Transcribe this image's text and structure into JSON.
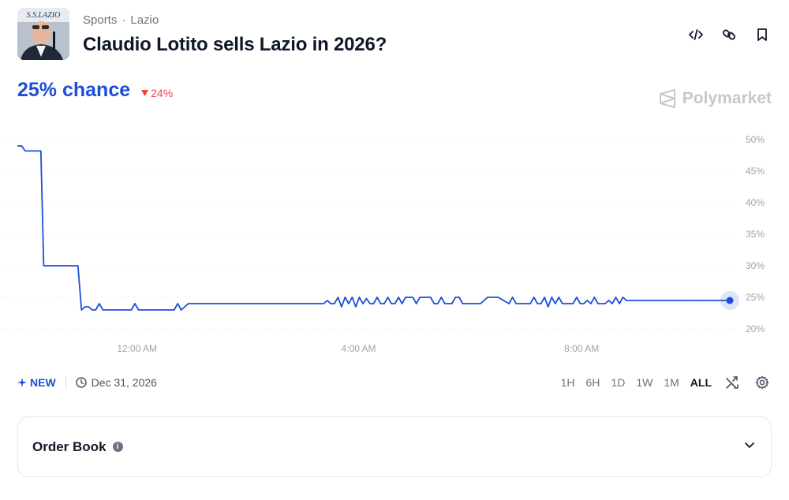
{
  "header": {
    "thumbnail_icon": "lazio-president-photo",
    "breadcrumb": [
      "Sports",
      "Lazio"
    ],
    "breadcrumb_sep": "·",
    "title": "Claudio Lotito sells Lazio in 2026?",
    "actions": [
      "embed-icon",
      "link-icon",
      "bookmark-icon"
    ]
  },
  "market": {
    "chance_label": "25% chance",
    "delta": "24%",
    "delta_direction": "down",
    "delta_color": "#ef4444",
    "accent": "#1d4ed8",
    "brand": "Polymarket"
  },
  "chart_data": {
    "type": "line",
    "title": "",
    "xlabel": "",
    "ylabel": "",
    "ylim": [
      20,
      50
    ],
    "yticks": [
      "50%",
      "45%",
      "40%",
      "35%",
      "30%",
      "25%",
      "20%"
    ],
    "ytick_values": [
      50,
      45,
      40,
      35,
      30,
      25,
      20
    ],
    "xtick_labels": [
      "12:00 AM",
      "4:00 AM",
      "8:00 AM"
    ],
    "xtick_positions": [
      0.168,
      0.479,
      0.792
    ],
    "grid": true,
    "line_color": "#1d4ed8",
    "series": [
      {
        "x": [
          0,
          0.006,
          0.011,
          0.015,
          0.033,
          0.037,
          0.08,
          0.085,
          0.09,
          0.095,
          0.1,
          0.105,
          0.11,
          0.115,
          0.12,
          0.14,
          0.16,
          0.165,
          0.17,
          0.2,
          0.22,
          0.225,
          0.23,
          0.24,
          0.25,
          0.3,
          0.35,
          0.43,
          0.435,
          0.44,
          0.445,
          0.45,
          0.455,
          0.46,
          0.465,
          0.47,
          0.475,
          0.48,
          0.485,
          0.49,
          0.495,
          0.5,
          0.505,
          0.51,
          0.515,
          0.52,
          0.525,
          0.53,
          0.535,
          0.54,
          0.545,
          0.55,
          0.555,
          0.56,
          0.565,
          0.57,
          0.58,
          0.585,
          0.59,
          0.595,
          0.6,
          0.61,
          0.615,
          0.62,
          0.625,
          0.63,
          0.64,
          0.645,
          0.65,
          0.66,
          0.675,
          0.69,
          0.695,
          0.7,
          0.72,
          0.725,
          0.73,
          0.735,
          0.74,
          0.745,
          0.75,
          0.755,
          0.76,
          0.765,
          0.77,
          0.775,
          0.78,
          0.785,
          0.79,
          0.795,
          0.8,
          0.805,
          0.81,
          0.815,
          0.82,
          0.825,
          0.83,
          0.835,
          0.84,
          0.845,
          0.85,
          0.855,
          0.86,
          0.865,
          0.87,
          1.0
        ],
        "values": [
          49,
          49,
          48.2,
          48.2,
          48.2,
          30,
          30,
          30,
          23,
          23.5,
          23.5,
          23,
          23,
          24,
          23,
          23,
          23,
          24,
          23,
          23,
          23,
          24,
          23,
          24,
          24,
          24,
          24,
          24,
          24.5,
          24,
          24,
          25,
          23.5,
          25,
          24,
          25,
          23.5,
          25,
          24,
          24.8,
          24,
          24,
          25,
          24,
          24,
          25,
          24,
          24,
          25,
          24,
          25,
          25,
          25,
          24,
          25,
          25,
          25,
          24,
          24,
          25,
          24,
          24,
          25,
          25,
          24,
          24,
          24,
          24,
          24,
          25,
          25,
          24,
          25,
          24,
          24,
          25,
          24,
          24,
          25,
          23.5,
          25,
          24,
          25,
          24,
          24,
          24,
          24,
          25,
          24,
          24,
          24.5,
          24,
          25,
          24,
          24,
          24,
          24.5,
          24,
          25,
          24,
          25,
          24.5,
          24.5,
          24.5,
          24.5,
          24.5
        ]
      }
    ]
  },
  "toolbar": {
    "new_label": "NEW",
    "date": "Dec 31, 2026",
    "ranges": [
      "1H",
      "6H",
      "1D",
      "1W",
      "1M",
      "ALL"
    ],
    "active_range": "ALL"
  },
  "orderbook": {
    "label": "Order Book",
    "info_glyph": "i"
  }
}
